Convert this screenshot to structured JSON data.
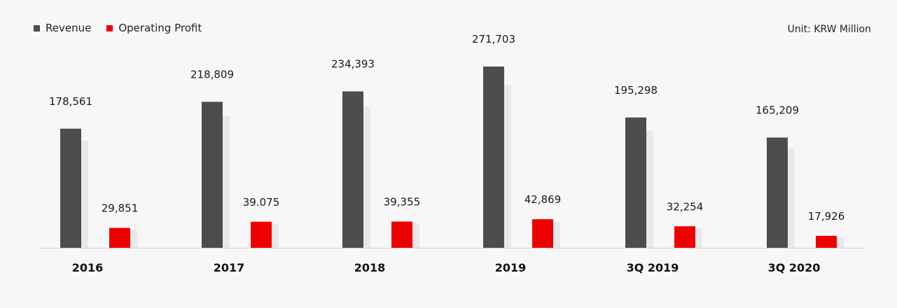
{
  "legend": {
    "revenue_label": "Revenue",
    "profit_label": "Operating Profit"
  },
  "unit_label": "Unit: KRW Million",
  "colors": {
    "revenue": "#4d4d4d",
    "profit": "#ee0000",
    "shadow": "#e9e9e9",
    "baseline": "#d4d4d4",
    "background": "#f7f7f7"
  },
  "chart_data": {
    "type": "bar",
    "categories": [
      "2016",
      "2017",
      "2018",
      "2019",
      "3Q 2019",
      "3Q 2020"
    ],
    "series": [
      {
        "name": "Revenue",
        "values": [
          178561,
          218809,
          234393,
          271703,
          195298,
          165209
        ],
        "labels": [
          "178,561",
          "218,809",
          "234,393",
          "271,703",
          "195,298",
          "165,209"
        ],
        "heights_scaled": true
      },
      {
        "name": "Operating Profit",
        "values": [
          29851,
          39075,
          39355,
          42869,
          32254,
          17926
        ],
        "labels": [
          "29,851",
          "39.075",
          "39,355",
          "42,869",
          "32,254",
          "17,926"
        ]
      }
    ],
    "legend_position": "top-left",
    "grid": false
  }
}
